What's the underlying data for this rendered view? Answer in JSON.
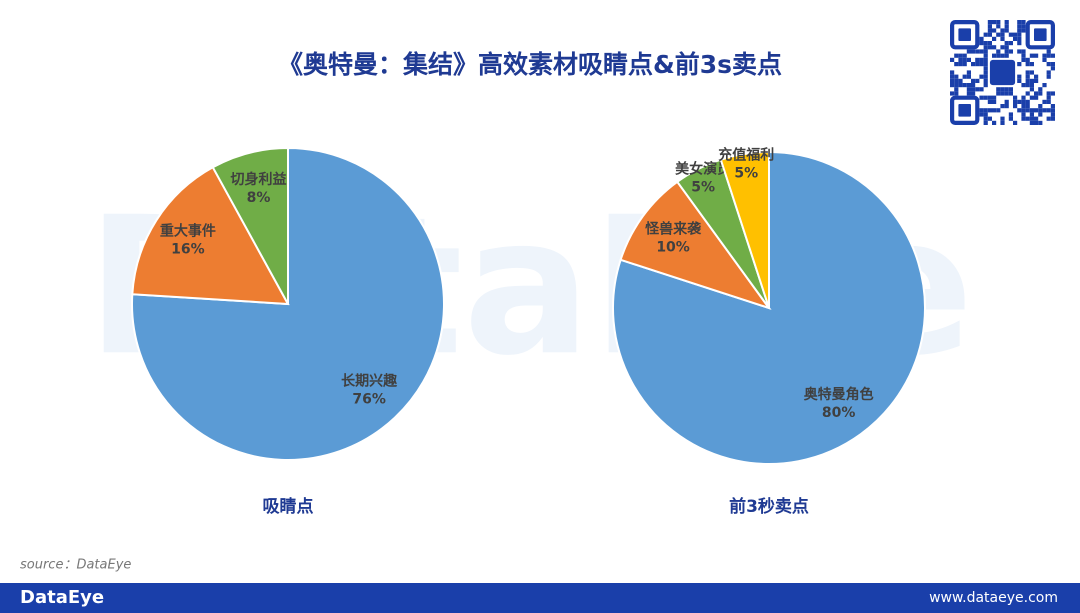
{
  "title": "《奥特曼：集结》高效素材吸睛点&前3s卖点",
  "watermark": "DataEye",
  "source": "source：DataEye",
  "footer": {
    "brand": "DataEye",
    "url": "www.dataeye.com"
  },
  "chart_data": [
    {
      "type": "pie",
      "title": "吸睛点",
      "categories": [
        "长期兴趣",
        "重大事件",
        "切身利益"
      ],
      "values": [
        76,
        16,
        8
      ],
      "value_labels": [
        "76%",
        "16%",
        "8%"
      ],
      "colors": [
        "#5b9bd5",
        "#ed7d31",
        "#70ad47"
      ]
    },
    {
      "type": "pie",
      "title": "前3秒卖点",
      "categories": [
        "奥特曼角色",
        "怪兽来袭",
        "美女演员",
        "充值福利"
      ],
      "values": [
        80,
        10,
        5,
        5
      ],
      "value_labels": [
        "80%",
        "10%",
        "5%",
        "5%"
      ],
      "colors": [
        "#5b9bd5",
        "#ed7d31",
        "#70ad47",
        "#ffc000"
      ]
    }
  ]
}
